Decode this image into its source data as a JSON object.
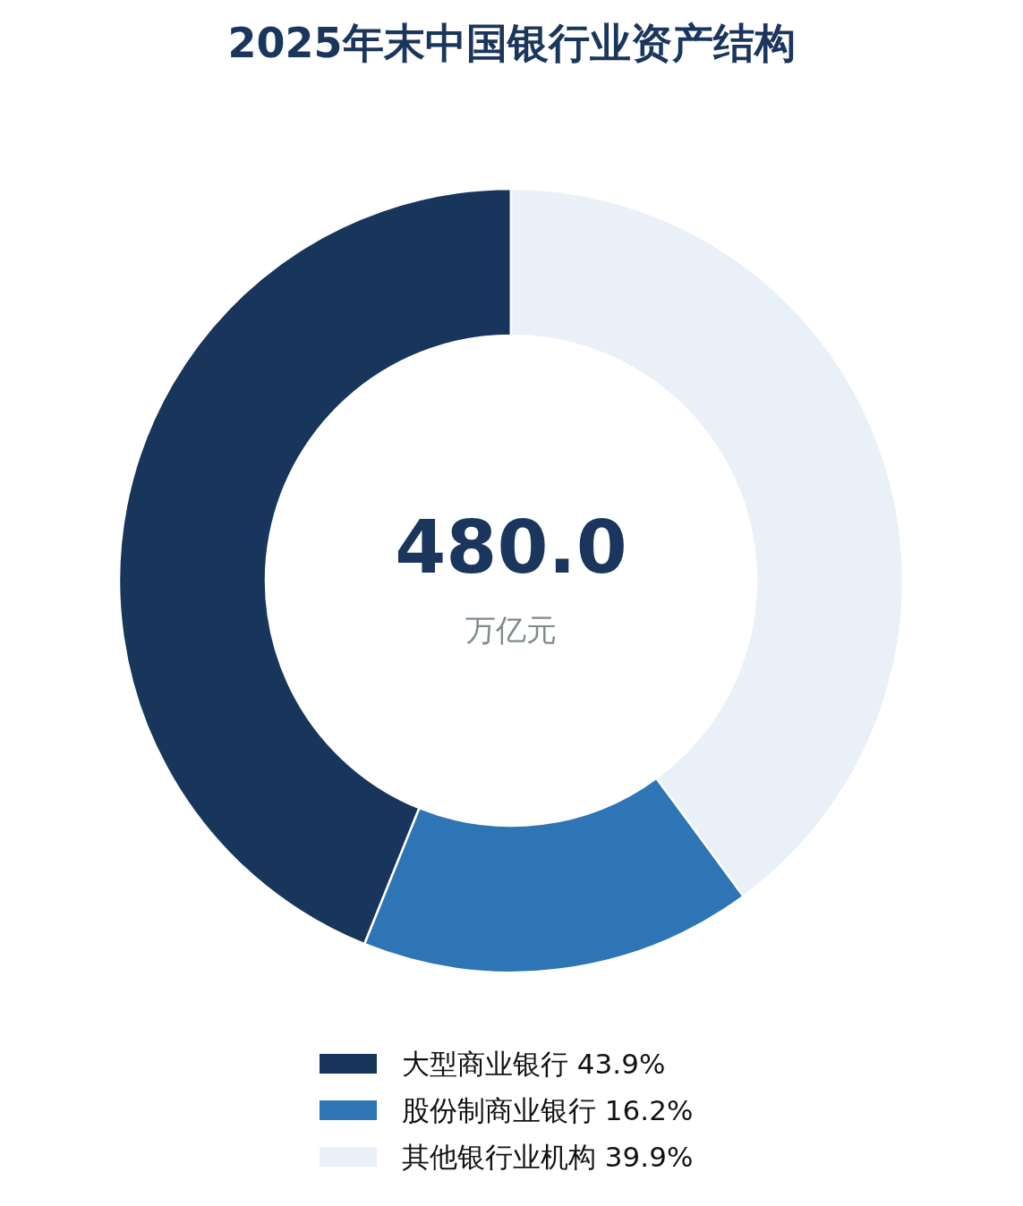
{
  "chart_data": {
    "type": "donut",
    "title": "2025年末中国银行业资产结构",
    "categories": [
      "大型商业银行",
      "股份制商业银行",
      "其他银行业机构"
    ],
    "values": [
      43.9,
      16.2,
      39.9
    ],
    "value_labels": [
      "43.9%",
      "16.2%",
      "39.9%"
    ],
    "colors": [
      "#18365c",
      "#2e75b6",
      "#e9f0f8"
    ],
    "annotations": [
      "480.0",
      "万亿元"
    ],
    "legend": "bottom"
  }
}
